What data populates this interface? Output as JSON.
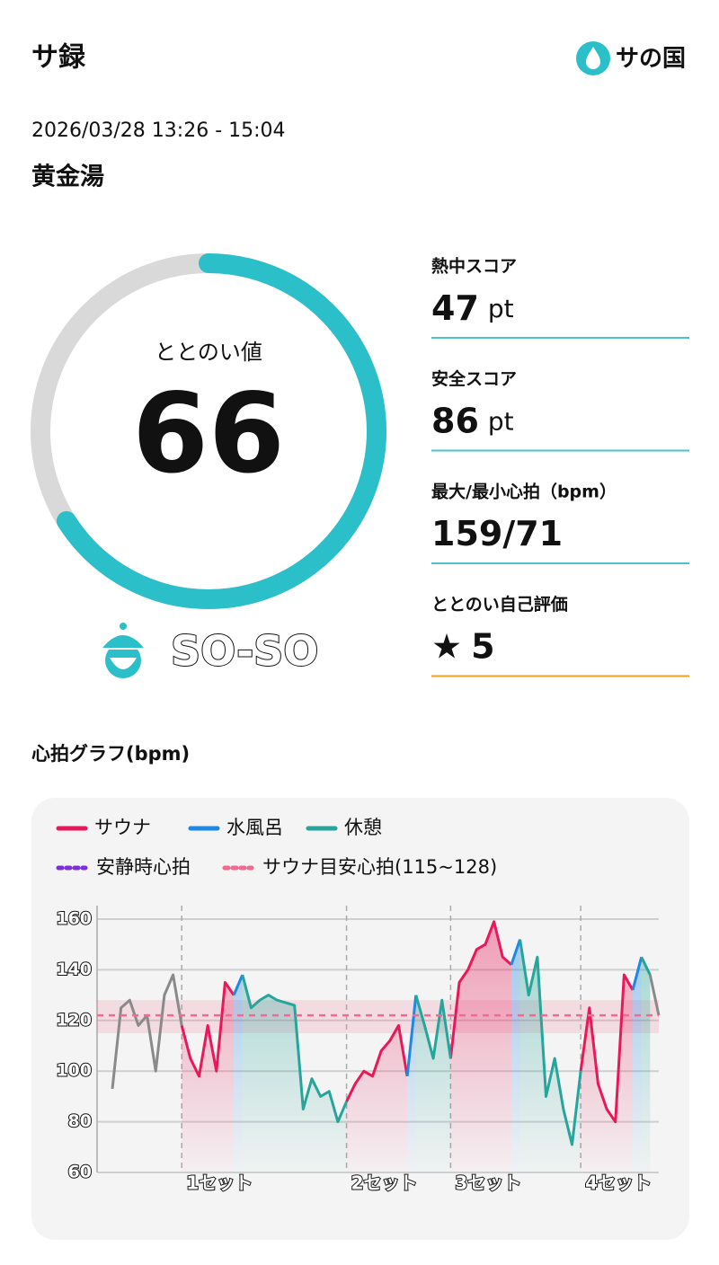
{
  "header": {
    "title": "サ録",
    "logo": "サの国"
  },
  "session": {
    "datetime": "2026/03/28 13:26 - 15:04",
    "place": "黄金湯"
  },
  "gauge": {
    "label": "ととのい値",
    "value": 66,
    "status": "SO-SO"
  },
  "stats": [
    {
      "label": "熱中スコア",
      "value": 47,
      "unit": "pt"
    },
    {
      "label": "安全スコア",
      "value": 86,
      "unit": "pt"
    },
    {
      "label": "最大/最小心拍（bpm）",
      "value": "159/71"
    },
    {
      "label": "ととのい自己評価",
      "star": "★",
      "value": 5
    }
  ],
  "chart_data": {
    "type": "line",
    "title": "心拍グラフ(bpm)",
    "categories": [
      null,
      null,
      null,
      null,
      null,
      null,
      null,
      null,
      "1セット",
      null,
      null,
      null,
      null,
      null,
      null,
      null,
      null,
      null,
      null,
      null,
      null,
      null,
      null,
      null,
      null,
      null,
      null,
      "2セット",
      null,
      null,
      null,
      null,
      null,
      null,
      null,
      null,
      null,
      null,
      null,
      "3セット",
      null,
      null,
      null,
      null,
      null,
      null,
      null,
      null,
      null,
      null,
      null,
      null,
      null,
      null,
      "4セット",
      null,
      null,
      null,
      null,
      null,
      null,
      null,
      null,
      null
    ],
    "series": [
      {
        "name": "サウナ",
        "color": "#e8195a",
        "values": [
          null,
          null,
          null,
          null,
          null,
          null,
          null,
          null,
          118,
          105,
          98,
          118,
          100,
          135,
          130,
          null,
          null,
          null,
          null,
          null,
          null,
          null,
          null,
          null,
          null,
          null,
          null,
          88,
          95,
          100,
          98,
          108,
          112,
          118,
          98,
          null,
          null,
          null,
          null,
          105,
          135,
          140,
          148,
          150,
          159,
          145,
          142,
          null,
          null,
          null,
          null,
          null,
          null,
          null,
          100,
          125,
          95,
          85,
          80,
          138,
          132,
          null,
          null,
          null
        ]
      },
      {
        "name": "水風呂",
        "color": "#1e88e5",
        "values": [
          null,
          null,
          null,
          null,
          null,
          null,
          null,
          null,
          null,
          null,
          null,
          null,
          null,
          null,
          130,
          138,
          null,
          null,
          null,
          null,
          null,
          null,
          null,
          null,
          null,
          null,
          null,
          null,
          null,
          null,
          null,
          null,
          null,
          null,
          98,
          130,
          null,
          null,
          null,
          null,
          null,
          null,
          null,
          null,
          null,
          null,
          142,
          152,
          null,
          null,
          null,
          null,
          null,
          null,
          null,
          null,
          null,
          null,
          null,
          null,
          132,
          145,
          null,
          null
        ]
      },
      {
        "name": "休憩",
        "color": "#26a69a",
        "values": [
          null,
          null,
          null,
          null,
          null,
          null,
          null,
          null,
          null,
          null,
          null,
          null,
          null,
          null,
          null,
          138,
          125,
          128,
          130,
          128,
          127,
          126,
          85,
          97,
          90,
          92,
          80,
          88,
          null,
          null,
          null,
          null,
          null,
          null,
          null,
          130,
          118,
          105,
          128,
          105,
          null,
          null,
          null,
          null,
          null,
          null,
          null,
          152,
          130,
          145,
          90,
          105,
          85,
          71,
          100,
          null,
          null,
          null,
          null,
          null,
          null,
          145,
          138,
          null
        ]
      },
      {
        "color": "#8a8a8a",
        "values": [
          93,
          125,
          128,
          118,
          122,
          100,
          130,
          138,
          118,
          null,
          null,
          null,
          null,
          null,
          null,
          null,
          null,
          null,
          null,
          null,
          null,
          null,
          null,
          null,
          null,
          null,
          null,
          null,
          null,
          null,
          null,
          null,
          null,
          null,
          null,
          null,
          null,
          null,
          null,
          null,
          null,
          null,
          null,
          null,
          null,
          null,
          null,
          null,
          null,
          null,
          null,
          null,
          null,
          null,
          null,
          null,
          null,
          null,
          null,
          null,
          null,
          null,
          138,
          122
        ]
      }
    ],
    "lines": [
      {
        "name": "安静時心拍",
        "color": "#7b2fe0"
      },
      {
        "name": "サウナ目安心拍(115~128)",
        "color": "#f06a92",
        "value": 122
      }
    ],
    "target_band": [
      115,
      128
    ],
    "ylim": [
      60,
      160
    ],
    "yticks": [
      60,
      80,
      100,
      120,
      140,
      160
    ],
    "grid": true
  }
}
